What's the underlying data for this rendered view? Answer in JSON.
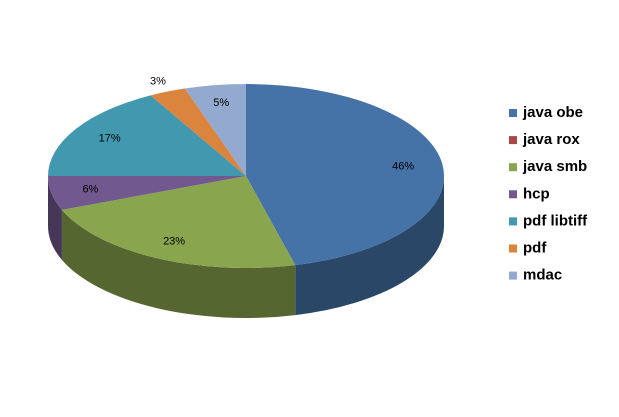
{
  "chart_data": {
    "type": "pie",
    "categories": [
      "java obe",
      "java rox",
      "java smb",
      "hcp",
      "pdf libtiff",
      "pdf",
      "mdac"
    ],
    "values": [
      46,
      0,
      23,
      6,
      17,
      3,
      5
    ],
    "value_labels": [
      "46%",
      null,
      "23%",
      "6%",
      "17%",
      "3%",
      "5%"
    ],
    "colors": [
      "#4572a7",
      "#aa4643",
      "#89a54e",
      "#71588f",
      "#4198af",
      "#db843d",
      "#93a9cf"
    ],
    "legend": "right"
  }
}
